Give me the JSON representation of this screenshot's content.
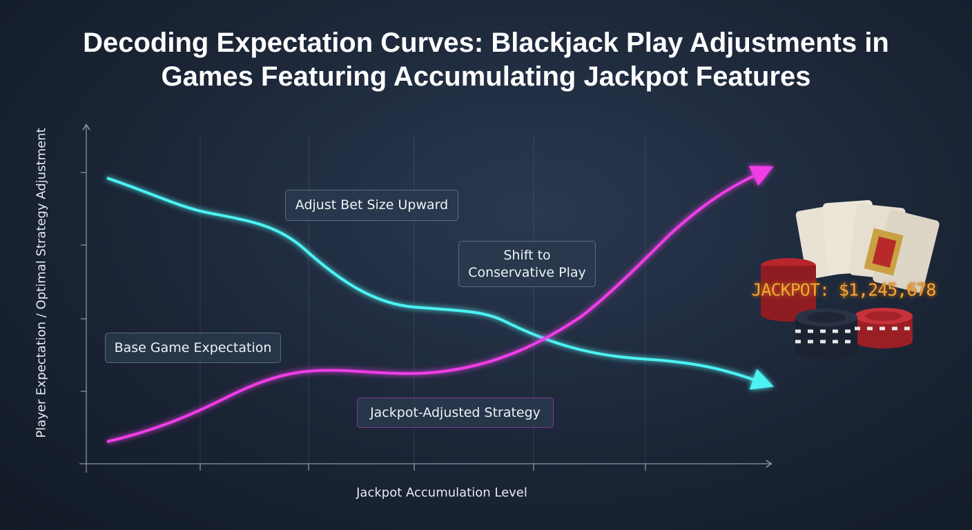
{
  "title": "Decoding Expectation Curves: Blackjack Play Adjustments in Games Featuring Accumulating Jackpot Features",
  "y_axis_label": "Player Expectation / Optimal Strategy Adjustment",
  "x_axis_label": "Jackpot Accumulation Level",
  "annotations": [
    "Adjust Bet Size Upward",
    "Shift to Conservative Play",
    "Base Game Expectation",
    "Jackpot-Adjusted Strategy"
  ],
  "jackpot_display": "JACKPOT: $1,245,678"
}
